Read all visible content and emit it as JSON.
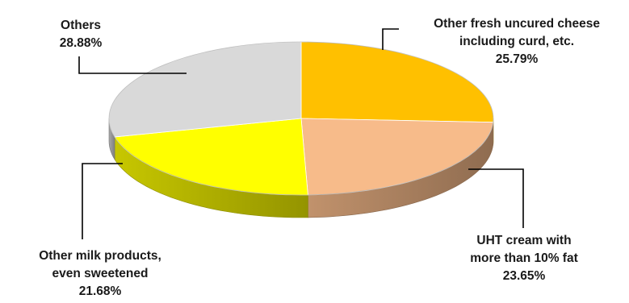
{
  "chart_data": {
    "type": "pie",
    "title": "",
    "slices": [
      {
        "label": [
          "Other fresh uncured cheese",
          "including curd, etc."
        ],
        "pct_label": "25.79%",
        "value": 25.79,
        "color": "#FFC000"
      },
      {
        "label": [
          "UHT cream with",
          "more than 10% fat"
        ],
        "pct_label": "23.65%",
        "value": 23.65,
        "color": "#F7BB8A"
      },
      {
        "label": [
          "Other milk products,",
          "even sweetened"
        ],
        "pct_label": "21.68%",
        "value": 21.68,
        "color": "#FFFF00"
      },
      {
        "label": [
          "Others"
        ],
        "pct_label": "28.88%",
        "value": 28.88,
        "color": "#D9D9D9"
      }
    ]
  }
}
